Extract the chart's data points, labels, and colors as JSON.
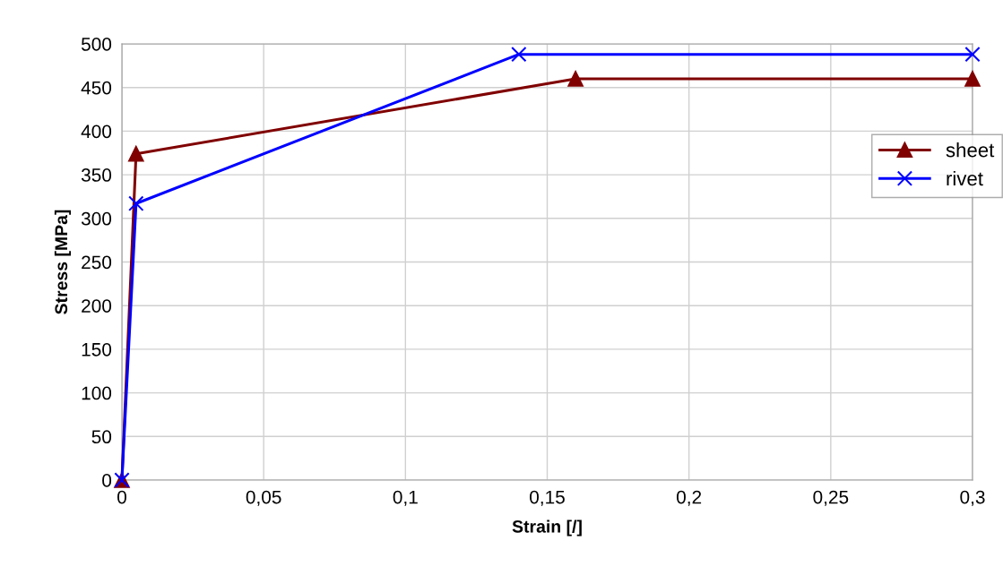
{
  "chart_data": {
    "type": "line",
    "xlabel": "Strain [/]",
    "ylabel": "Stress [MPa]",
    "series": [
      {
        "name": "sheet",
        "color": "#800000",
        "marker": "triangle",
        "x": [
          0,
          0.005,
          0.16,
          0.3
        ],
        "values": [
          0,
          374,
          460,
          460
        ]
      },
      {
        "name": "rivet",
        "color": "#0000ff",
        "marker": "cross",
        "x": [
          0,
          0.005,
          0.14,
          0.3
        ],
        "values": [
          0,
          317,
          488,
          488
        ]
      }
    ],
    "xlim": [
      0,
      0.3
    ],
    "xticks": [
      0,
      {
        "value": 0.05,
        "label": "0,05"
      },
      {
        "value": 0.1,
        "label": "0,1"
      },
      {
        "value": 0.15,
        "label": "0,15"
      },
      {
        "value": 0.2,
        "label": "0,2"
      },
      {
        "value": 0.25,
        "label": "0,25"
      },
      {
        "value": 0.3,
        "label": "0,3"
      }
    ],
    "ylim": [
      0,
      500
    ],
    "yticks": [
      0,
      50,
      100,
      150,
      200,
      250,
      300,
      350,
      400,
      450,
      500
    ],
    "grid": true,
    "legend": "right",
    "line_style": "solid"
  }
}
